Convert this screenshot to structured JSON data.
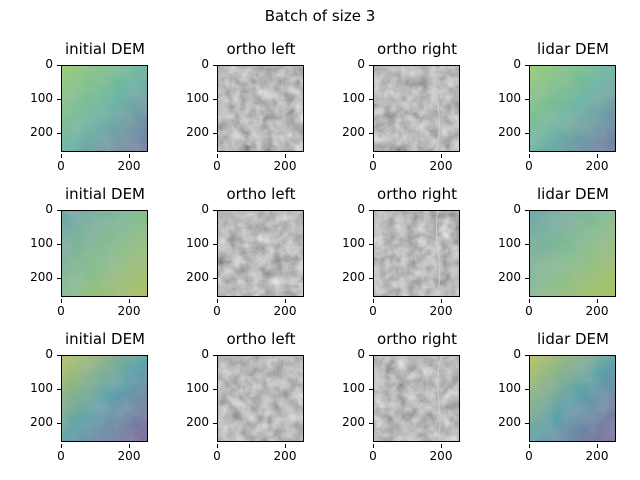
{
  "figure": {
    "suptitle": "Batch of size 3",
    "column_titles": [
      "initial DEM",
      "ortho left",
      "ortho right",
      "lidar DEM"
    ],
    "yticks": [
      "0",
      "100",
      "200"
    ],
    "xticks": [
      "0",
      "200"
    ],
    "rows": [
      {
        "panels": [
          {
            "title": "initial DEM",
            "kind": "dem"
          },
          {
            "title": "ortho left",
            "kind": "ortho"
          },
          {
            "title": "ortho right",
            "kind": "ortho"
          },
          {
            "title": "lidar DEM",
            "kind": "dem"
          }
        ]
      },
      {
        "panels": [
          {
            "title": "initial DEM",
            "kind": "dem"
          },
          {
            "title": "ortho left",
            "kind": "ortho"
          },
          {
            "title": "ortho right",
            "kind": "ortho"
          },
          {
            "title": "lidar DEM",
            "kind": "dem"
          }
        ]
      },
      {
        "panels": [
          {
            "title": "initial DEM",
            "kind": "dem"
          },
          {
            "title": "ortho left",
            "kind": "ortho"
          },
          {
            "title": "ortho right",
            "kind": "ortho"
          },
          {
            "title": "lidar DEM",
            "kind": "dem"
          }
        ]
      }
    ]
  }
}
